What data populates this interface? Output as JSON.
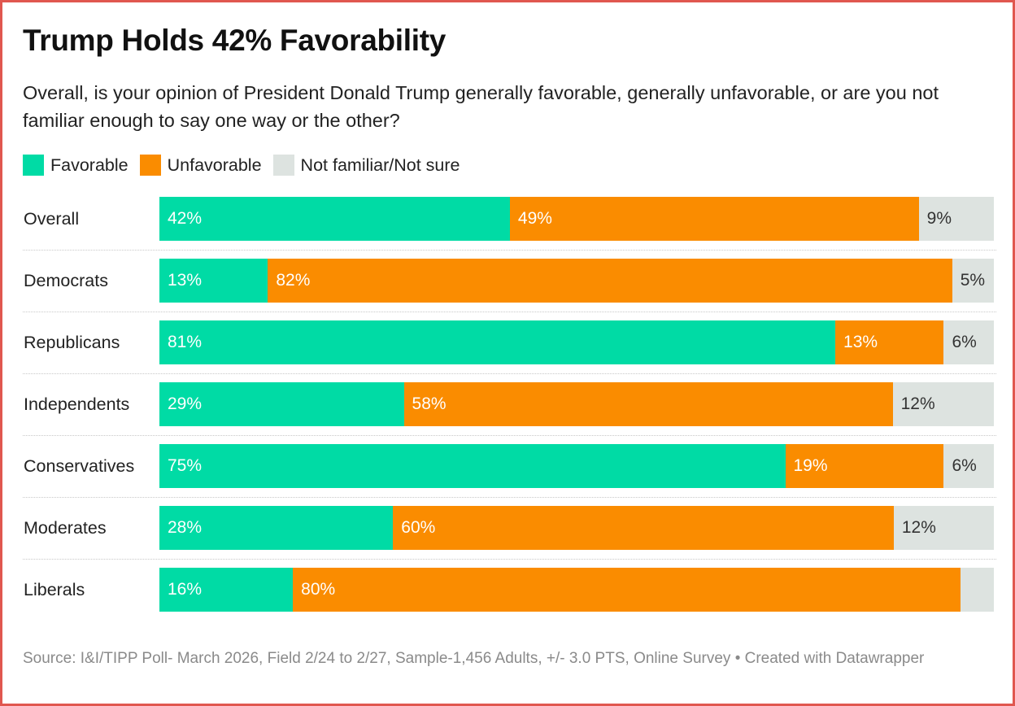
{
  "title": "Trump Holds 42% Favorability",
  "subtitle": "Overall, is your opinion of President Donald Trump generally favorable, generally unfavorable, or are you not familiar enough to say one way or the other?",
  "footer": {
    "source": "Source: I&I/TIPP Poll- March 2026, Field 2/24 to 2/27, Sample-1,456 Adults, +/- 3.0 PTS, Online Survey",
    "separator": "•",
    "credit": "Created with Datawrapper"
  },
  "colors": {
    "favorable": "#00dba5",
    "unfavorable": "#fa8c00",
    "not_sure": "#dde3e0",
    "border": "#e0574f"
  },
  "chart_data": {
    "type": "bar",
    "stacked": true,
    "orientation": "horizontal",
    "unit": "%",
    "xlim": [
      0,
      100
    ],
    "legend_position": "top-left",
    "grid": false,
    "categories": [
      "Overall",
      "Democrats",
      "Republicans",
      "Independents",
      "Conservatives",
      "Moderates",
      "Liberals"
    ],
    "series": [
      {
        "name": "Favorable",
        "color": "#00dba5",
        "values": [
          42,
          13,
          81,
          29,
          75,
          28,
          16
        ],
        "labels": [
          "42%",
          "13%",
          "81%",
          "29%",
          "75%",
          "28%",
          "16%"
        ]
      },
      {
        "name": "Unfavorable",
        "color": "#fa8c00",
        "values": [
          49,
          82,
          13,
          58,
          19,
          60,
          80
        ],
        "labels": [
          "49%",
          "82%",
          "13%",
          "58%",
          "19%",
          "60%",
          "80%"
        ]
      },
      {
        "name": "Not familiar/Not sure",
        "color": "#dde3e0",
        "values": [
          9,
          5,
          6,
          12,
          6,
          12,
          4
        ],
        "labels": [
          "9%",
          "5%",
          "6%",
          "12%",
          "6%",
          "12%",
          ""
        ]
      }
    ]
  }
}
